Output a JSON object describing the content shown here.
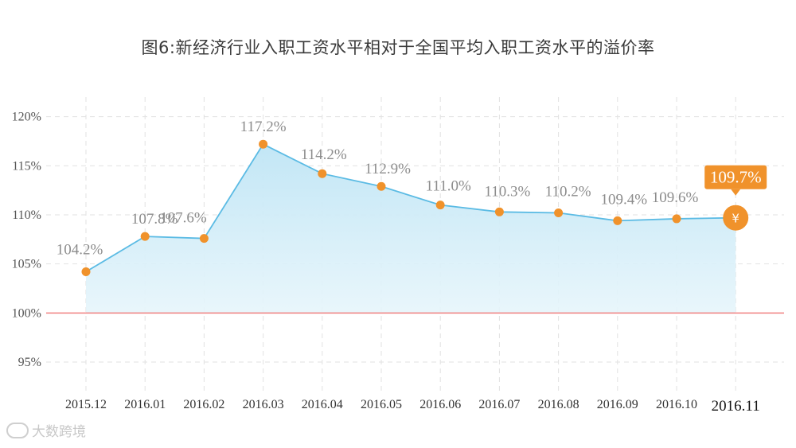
{
  "chart_data": {
    "type": "area",
    "title": "图6:新经济行业入职工资水平相对于全国平均入职工资水平的溢价率",
    "categories": [
      "2015.12",
      "2016.01",
      "2016.02",
      "2016.03",
      "2016.04",
      "2016.05",
      "2016.06",
      "2016.07",
      "2016.08",
      "2016.09",
      "2016.10",
      "2016.11"
    ],
    "values": [
      104.2,
      107.8,
      107.6,
      117.2,
      114.2,
      112.9,
      111.0,
      110.3,
      110.2,
      109.4,
      109.6,
      109.7
    ],
    "data_labels": [
      "104.2%",
      "107.8%",
      "107.6%",
      "117.2%",
      "114.2%",
      "112.9%",
      "111.0%",
      "110.3%",
      "110.2%",
      "109.4%",
      "109.6%",
      "109.7%"
    ],
    "y_ticks": [
      95,
      100,
      105,
      110,
      115,
      120
    ],
    "y_tick_labels": [
      "95%",
      "100%",
      "105%",
      "110%",
      "115%",
      "120%"
    ],
    "ylim": [
      92,
      122
    ],
    "reference_line": 100,
    "highlight_symbol": "¥",
    "grid": true,
    "colors": {
      "line": "#5bbbe4",
      "area": "#c6e8f6",
      "marker": "#f0922b",
      "reference": "#f08080",
      "grid": "#e2e2e2"
    }
  },
  "watermark": "大数跨境"
}
